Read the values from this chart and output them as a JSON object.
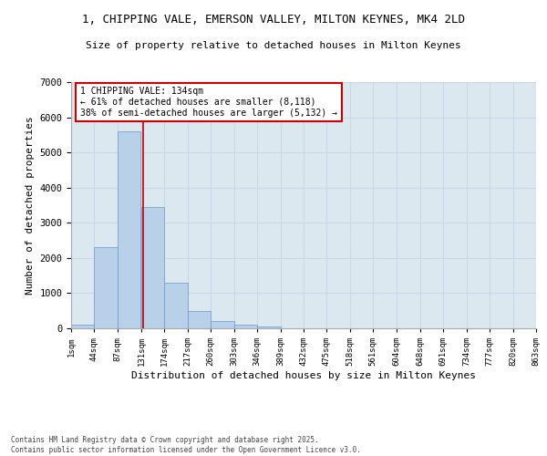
{
  "title_line1": "1, CHIPPING VALE, EMERSON VALLEY, MILTON KEYNES, MK4 2LD",
  "title_line2": "Size of property relative to detached houses in Milton Keynes",
  "xlabel": "Distribution of detached houses by size in Milton Keynes",
  "ylabel": "Number of detached properties",
  "bar_color": "#b8d0e8",
  "bar_edge_color": "#6699cc",
  "grid_color": "#c8d8e8",
  "background_color": "#dce8f0",
  "vline_x": 134,
  "vline_color": "#cc0000",
  "annotation_text": "1 CHIPPING VALE: 134sqm\n← 61% of detached houses are smaller (8,118)\n38% of semi-detached houses are larger (5,132) →",
  "annotation_box_color": "#cc0000",
  "bins": [
    1,
    44,
    87,
    131,
    174,
    217,
    260,
    303,
    346,
    389,
    432,
    475,
    518,
    561,
    604,
    648,
    691,
    734,
    777,
    820,
    863
  ],
  "bar_heights": [
    100,
    2300,
    5600,
    3450,
    1300,
    500,
    200,
    100,
    60,
    0,
    0,
    0,
    0,
    0,
    0,
    0,
    0,
    0,
    0,
    0
  ],
  "ylim": [
    0,
    7000
  ],
  "yticks": [
    0,
    1000,
    2000,
    3000,
    4000,
    5000,
    6000,
    7000
  ],
  "footnote": "Contains HM Land Registry data © Crown copyright and database right 2025.\nContains public sector information licensed under the Open Government Licence v3.0.",
  "font_name": "DejaVu Sans Mono"
}
